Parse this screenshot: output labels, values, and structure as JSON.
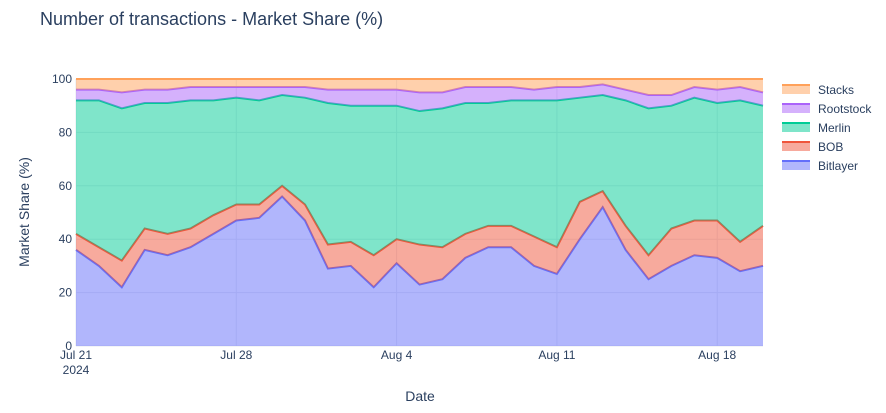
{
  "chart_data": {
    "type": "area",
    "stacked": true,
    "normalized_percent": true,
    "title": "Number of transactions - Market Share (%)",
    "xlabel": "Date",
    "ylabel": "Market Share (%)",
    "ylim": [
      0,
      100
    ],
    "yticks": [
      "0",
      "20",
      "40",
      "60",
      "80",
      "100"
    ],
    "xticks": [
      {
        "day": 0,
        "label": "Jul 21",
        "sublabel": "2024"
      },
      {
        "day": 7,
        "label": "Jul 28",
        "sublabel": ""
      },
      {
        "day": 14,
        "label": "Aug 4",
        "sublabel": ""
      },
      {
        "day": 21,
        "label": "Aug 11",
        "sublabel": ""
      },
      {
        "day": 28,
        "label": "Aug 18",
        "sublabel": ""
      }
    ],
    "x": [
      "2024-07-21",
      "2024-07-22",
      "2024-07-23",
      "2024-07-24",
      "2024-07-25",
      "2024-07-26",
      "2024-07-27",
      "2024-07-28",
      "2024-07-29",
      "2024-07-30",
      "2024-07-31",
      "2024-08-01",
      "2024-08-02",
      "2024-08-03",
      "2024-08-04",
      "2024-08-05",
      "2024-08-06",
      "2024-08-07",
      "2024-08-08",
      "2024-08-09",
      "2024-08-10",
      "2024-08-11",
      "2024-08-12",
      "2024-08-13",
      "2024-08-14",
      "2024-08-15",
      "2024-08-16",
      "2024-08-17",
      "2024-08-18",
      "2024-08-19",
      "2024-08-20"
    ],
    "legend_position": "right",
    "grid": true,
    "series": [
      {
        "name": "Bitlayer",
        "color": "#636efa",
        "values": [
          36,
          30,
          22,
          36,
          34,
          37,
          42,
          47,
          48,
          56,
          47,
          29,
          30,
          22,
          31,
          23,
          25,
          33,
          37,
          37,
          30,
          27,
          40,
          52,
          36,
          25,
          30,
          34,
          33,
          28,
          30
        ]
      },
      {
        "name": "BOB",
        "color": "#ef553b",
        "values": [
          6,
          7,
          10,
          8,
          8,
          7,
          7,
          6,
          5,
          4,
          6,
          9,
          9,
          12,
          9,
          15,
          12,
          9,
          8,
          8,
          11,
          10,
          14,
          6,
          9,
          9,
          14,
          13,
          14,
          11,
          15
        ]
      },
      {
        "name": "Merlin",
        "color": "#00cc96",
        "values": [
          50,
          55,
          57,
          47,
          49,
          48,
          43,
          40,
          39,
          34,
          40,
          53,
          51,
          56,
          50,
          50,
          52,
          49,
          46,
          47,
          51,
          55,
          39,
          36,
          47,
          55,
          46,
          46,
          44,
          53,
          45
        ]
      },
      {
        "name": "Rootstock",
        "color": "#ab63fa",
        "values": [
          4,
          4,
          6,
          5,
          5,
          5,
          5,
          4,
          5,
          3,
          4,
          5,
          6,
          6,
          6,
          7,
          6,
          6,
          6,
          5,
          4,
          5,
          4,
          4,
          4,
          5,
          4,
          4,
          5,
          5,
          5
        ]
      },
      {
        "name": "Stacks",
        "color": "#ffa15a",
        "values": [
          4,
          4,
          5,
          4,
          4,
          3,
          3,
          3,
          3,
          3,
          3,
          4,
          4,
          4,
          4,
          5,
          5,
          3,
          3,
          3,
          4,
          3,
          3,
          2,
          4,
          6,
          6,
          3,
          4,
          3,
          5
        ]
      }
    ]
  }
}
